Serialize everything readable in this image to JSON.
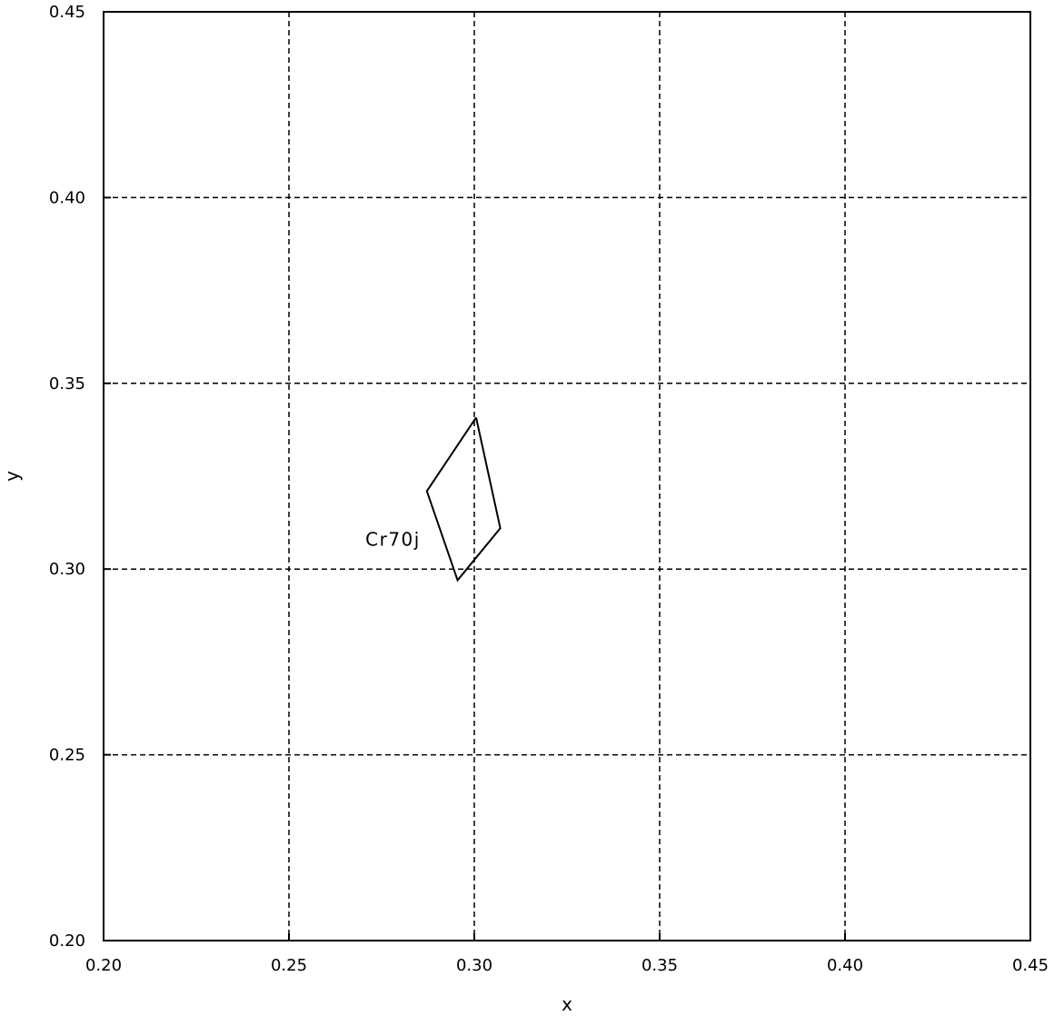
{
  "chart_data": {
    "type": "line",
    "title": "",
    "xlabel": "x",
    "ylabel": "y",
    "xlim": [
      0.2,
      0.45
    ],
    "ylim": [
      0.2,
      0.45
    ],
    "grid": true,
    "x_ticks": [
      0.2,
      0.25,
      0.3,
      0.35,
      0.4,
      0.45
    ],
    "y_ticks": [
      0.2,
      0.25,
      0.3,
      0.35,
      0.4,
      0.45
    ],
    "x_tick_labels": [
      "0.20",
      "0.25",
      "0.30",
      "0.35",
      "0.40",
      "0.45"
    ],
    "y_tick_labels": [
      "0.20",
      "0.25",
      "0.30",
      "0.35",
      "0.40",
      "0.45"
    ],
    "series": [
      {
        "points": [
          {
            "x": 0.3005,
            "y": 0.3408
          },
          {
            "x": 0.307,
            "y": 0.311
          },
          {
            "x": 0.2955,
            "y": 0.297
          },
          {
            "x": 0.2872,
            "y": 0.321
          },
          {
            "x": 0.3005,
            "y": 0.3408
          }
        ]
      }
    ],
    "annotations": [
      {
        "text": "Cr70j",
        "x": 0.2855,
        "y": 0.3063
      }
    ]
  }
}
